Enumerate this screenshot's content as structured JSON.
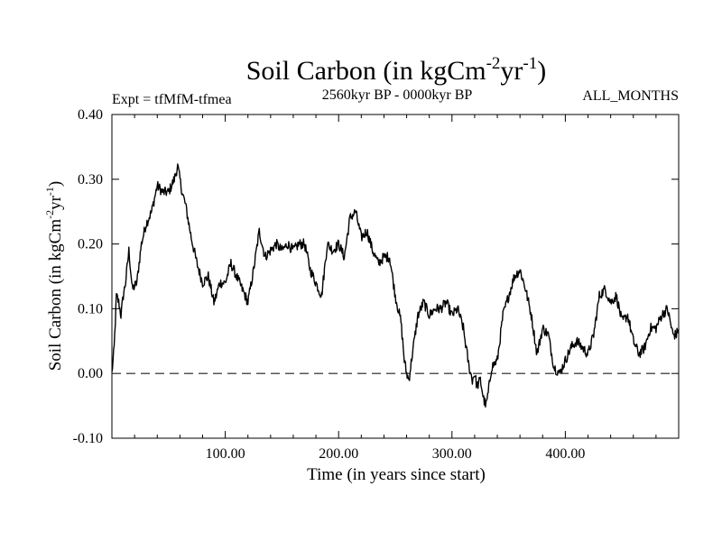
{
  "chart_data": {
    "type": "line",
    "title": {
      "main": "Soil Carbon (in kgCm",
      "sup1": "-2",
      "mid": "yr",
      "sup2": "-1",
      "end": ")"
    },
    "subtitle_left": "Expt = tfMfM-tfmea",
    "subtitle_center": "2560kyr BP - 0000kyr BP",
    "subtitle_right": "ALL_MONTHS",
    "xlabel": "Time (in years since start)",
    "ylabel": {
      "main": "Soil Carbon (in kgCm",
      "sup1": "-2",
      "mid": "yr",
      "sup2": "-1",
      "end": ")"
    },
    "xlim": [
      0,
      500
    ],
    "ylim": [
      -0.1,
      0.4
    ],
    "xticks": [
      100,
      200,
      300,
      400
    ],
    "xtick_labels": [
      "100.00",
      "200.00",
      "300.00",
      "400.00"
    ],
    "yticks": [
      -0.1,
      0.0,
      0.1,
      0.2,
      0.3,
      0.4
    ],
    "ytick_labels": [
      "-0.10",
      "0.00",
      "0.10",
      "0.20",
      "0.30",
      "0.40"
    ],
    "reference_line": {
      "y": 0.0,
      "style": "dashed"
    },
    "series": [
      {
        "name": "Soil Carbon",
        "color": "#000000",
        "x": [
          0,
          2,
          4,
          6,
          8,
          10,
          12,
          15,
          18,
          22,
          26,
          30,
          35,
          40,
          45,
          50,
          55,
          58,
          60,
          62,
          65,
          70,
          75,
          80,
          85,
          90,
          92,
          95,
          100,
          105,
          110,
          115,
          120,
          125,
          130,
          135,
          140,
          145,
          150,
          155,
          160,
          165,
          170,
          175,
          180,
          185,
          190,
          195,
          200,
          205,
          210,
          215,
          220,
          225,
          230,
          235,
          240,
          245,
          250,
          255,
          258,
          260,
          262,
          265,
          270,
          275,
          280,
          285,
          290,
          295,
          300,
          305,
          310,
          315,
          318,
          320,
          322,
          325,
          328,
          330,
          332,
          335,
          340,
          345,
          350,
          355,
          360,
          365,
          370,
          375,
          380,
          385,
          390,
          395,
          400,
          405,
          410,
          415,
          420,
          425,
          430,
          435,
          440,
          445,
          450,
          455,
          460,
          465,
          470,
          475,
          480,
          485,
          490,
          495,
          498,
          500
        ],
        "y": [
          0.0,
          0.04,
          0.12,
          0.11,
          0.09,
          0.12,
          0.14,
          0.19,
          0.13,
          0.14,
          0.2,
          0.23,
          0.25,
          0.29,
          0.28,
          0.28,
          0.3,
          0.32,
          0.3,
          0.28,
          0.26,
          0.21,
          0.17,
          0.14,
          0.15,
          0.11,
          0.12,
          0.14,
          0.14,
          0.17,
          0.15,
          0.13,
          0.11,
          0.16,
          0.22,
          0.18,
          0.19,
          0.2,
          0.19,
          0.2,
          0.19,
          0.2,
          0.2,
          0.16,
          0.14,
          0.12,
          0.2,
          0.19,
          0.2,
          0.18,
          0.24,
          0.25,
          0.21,
          0.22,
          0.19,
          0.17,
          0.18,
          0.18,
          0.12,
          0.08,
          0.02,
          0.0,
          -0.01,
          0.03,
          0.09,
          0.11,
          0.09,
          0.1,
          0.1,
          0.11,
          0.09,
          0.1,
          0.07,
          0.01,
          -0.01,
          0.0,
          -0.02,
          -0.01,
          -0.04,
          -0.05,
          -0.03,
          0.01,
          0.02,
          0.09,
          0.12,
          0.15,
          0.16,
          0.13,
          0.09,
          0.03,
          0.07,
          0.06,
          0.01,
          0.0,
          0.02,
          0.04,
          0.05,
          0.04,
          0.03,
          0.06,
          0.12,
          0.13,
          0.11,
          0.12,
          0.08,
          0.09,
          0.05,
          0.03,
          0.04,
          0.07,
          0.07,
          0.09,
          0.1,
          0.06,
          0.06,
          0.07
        ]
      }
    ]
  }
}
